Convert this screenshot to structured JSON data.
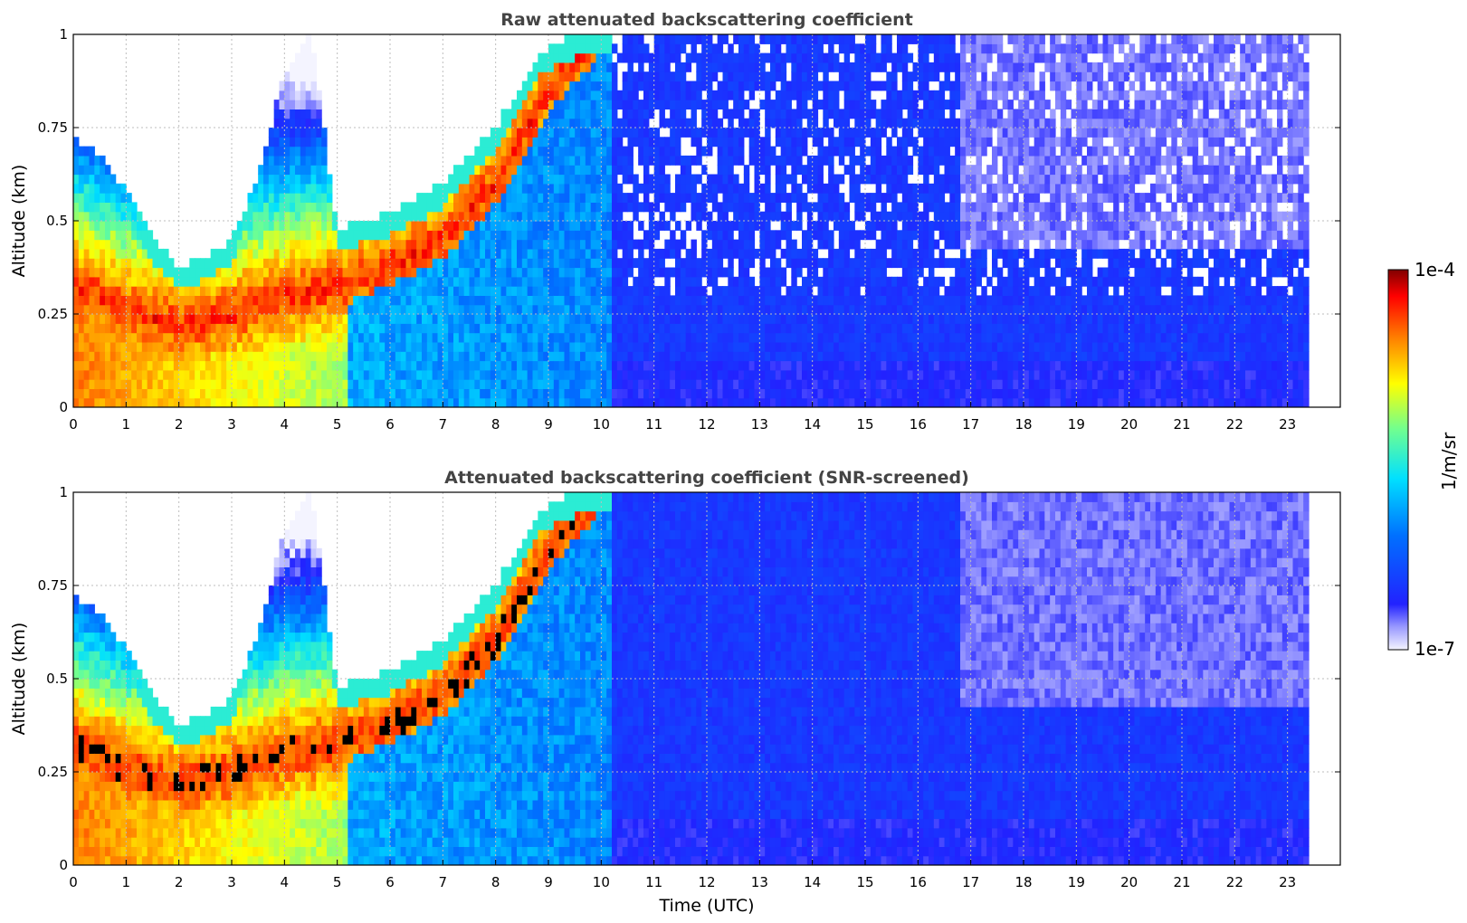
{
  "chart_data": [
    {
      "type": "heatmap",
      "title": "Raw attenuated backscattering coefficient",
      "xlabel": "",
      "ylabel": "Altitude (km)",
      "xlim": [
        0,
        24
      ],
      "ylim": [
        0,
        1
      ],
      "data_x_extent": [
        0,
        23.4
      ],
      "xticks": [
        0,
        1,
        2,
        3,
        4,
        5,
        6,
        7,
        8,
        9,
        10,
        11,
        12,
        13,
        14,
        15,
        16,
        17,
        18,
        19,
        20,
        21,
        22,
        23
      ],
      "yticks": [
        0,
        0.25,
        0.5,
        0.75,
        1
      ],
      "ytick_labels": [
        "0",
        "0.25",
        "0.5",
        "0.75",
        "1"
      ],
      "grid": true,
      "color_scale": "log",
      "field_description_values": {
        "layer_top_km": [
          [
            0,
            0.72
          ],
          [
            0.5,
            0.68
          ],
          [
            1,
            0.58
          ],
          [
            1.5,
            0.45
          ],
          [
            2,
            0.38
          ],
          [
            2.5,
            0.4
          ],
          [
            3,
            0.45
          ],
          [
            3.5,
            0.62
          ],
          [
            4,
            0.9
          ],
          [
            4.5,
            1.0
          ],
          [
            5,
            0.48
          ],
          [
            6,
            0.52
          ],
          [
            7,
            0.6
          ],
          [
            8,
            0.75
          ],
          [
            8.8,
            0.95
          ],
          [
            9.5,
            1.0
          ],
          [
            10.2,
            1.0
          ]
        ],
        "layer_peak_km": [
          [
            0,
            0.33
          ],
          [
            1,
            0.26
          ],
          [
            2,
            0.22
          ],
          [
            3,
            0.25
          ],
          [
            4,
            0.3
          ],
          [
            5,
            0.32
          ],
          [
            6,
            0.38
          ],
          [
            7,
            0.45
          ],
          [
            8,
            0.6
          ],
          [
            9,
            0.85
          ],
          [
            10,
            1.0
          ]
        ],
        "surface_layer_end_utc": 5.2,
        "transition_utc": 10.2
      }
    },
    {
      "type": "heatmap",
      "title": "Attenuated backscattering coefficient (SNR-screened)",
      "xlabel": "Time (UTC)",
      "ylabel": "Altitude (km)",
      "xlim": [
        0,
        24
      ],
      "ylim": [
        0,
        1
      ],
      "data_x_extent": [
        0,
        23.4
      ],
      "xticks": [
        0,
        1,
        2,
        3,
        4,
        5,
        6,
        7,
        8,
        9,
        10,
        11,
        12,
        13,
        14,
        15,
        16,
        17,
        18,
        19,
        20,
        21,
        22,
        23
      ],
      "yticks": [
        0,
        0.25,
        0.5,
        0.75,
        1
      ],
      "ytick_labels": [
        "0",
        "0.25",
        "0.5",
        "0.75",
        "1"
      ],
      "grid": true,
      "color_scale": "log",
      "saturated_color": "#000000"
    }
  ],
  "colorbar": {
    "label": "1/m/sr",
    "min_label": "1e-7",
    "max_label": "1e-4",
    "colormap": "jet",
    "colors": [
      "#f2f2ff",
      "#8080ff",
      "#0000ff",
      "#0080ff",
      "#00ffff",
      "#80ff80",
      "#ffff00",
      "#ff8000",
      "#ff0000",
      "#800000"
    ]
  }
}
